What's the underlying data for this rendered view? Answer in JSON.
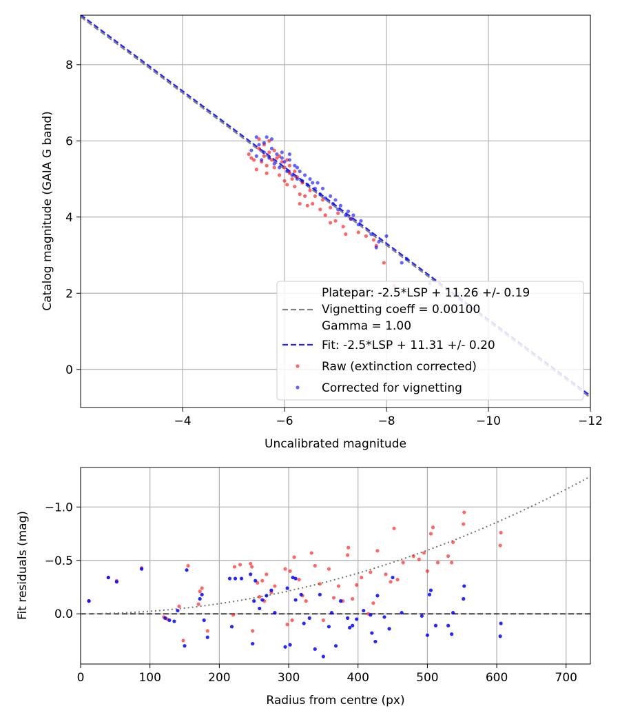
{
  "colors": {
    "raw": "#ff0000",
    "corrected": "#0000ff",
    "platepar": "#808080",
    "fit": "#2222ff",
    "grid": "#b0b0b0",
    "zero_line": "#404040",
    "vignetting_curve": "#707070"
  },
  "chart_data": [
    {
      "type": "scatter",
      "title": "",
      "xlabel": "Uncalibrated magnitude",
      "ylabel": "Catalog magnitude (GAIA G band)",
      "xlim": [
        -2,
        -12
      ],
      "ylim": [
        9.3,
        -1.0
      ],
      "xticks": [
        -4,
        -6,
        -8,
        -10,
        -12
      ],
      "xtick_labels": [
        "−4",
        "−6",
        "−8",
        "−10",
        "−12"
      ],
      "yticks": [
        0,
        2,
        4,
        6,
        8
      ],
      "ytick_labels": [
        "0",
        "2",
        "4",
        "6",
        "8"
      ],
      "grid": true,
      "legend_position": "lower-right",
      "legend": [
        "Platepar: -2.5*LSP + 11.26 +/- 0.19",
        "Vignetting coeff = 0.00100",
        "Gamma = 1.00",
        "Fit: -2.5*LSP + 11.31 +/- 0.20",
        "Raw (extinction corrected)",
        "Corrected for vignetting"
      ],
      "lines": [
        {
          "name": "Platepar",
          "x": [
            -2,
            -12
          ],
          "y": [
            9.26,
            -0.74
          ]
        },
        {
          "name": "Fit",
          "x": [
            -2,
            -12
          ],
          "y": [
            9.31,
            -0.69
          ]
        }
      ],
      "series": [
        {
          "name": "Raw (extinction corrected)",
          "points": [
            [
              -5.3,
              5.65
            ],
            [
              -5.4,
              5.5
            ],
            [
              -5.45,
              5.25
            ],
            [
              -5.5,
              5.8
            ],
            [
              -5.55,
              5.45
            ],
            [
              -5.6,
              5.6
            ],
            [
              -5.65,
              5.35
            ],
            [
              -5.7,
              5.7
            ],
            [
              -5.75,
              5.5
            ],
            [
              -5.8,
              5.3
            ],
            [
              -5.85,
              5.55
            ],
            [
              -5.9,
              5.1
            ],
            [
              -5.95,
              5.45
            ],
            [
              -6.0,
              4.95
            ],
            [
              -6.0,
              5.3
            ],
            [
              -6.05,
              4.85
            ],
            [
              -6.1,
              5.15
            ],
            [
              -6.15,
              5.0
            ],
            [
              -6.2,
              4.8
            ],
            [
              -6.25,
              5.05
            ],
            [
              -6.3,
              4.6
            ],
            [
              -6.35,
              4.9
            ],
            [
              -6.4,
              4.55
            ],
            [
              -6.45,
              4.3
            ],
            [
              -6.5,
              4.7
            ],
            [
              -6.55,
              4.35
            ],
            [
              -6.6,
              4.55
            ],
            [
              -6.7,
              4.2
            ],
            [
              -6.75,
              4.45
            ],
            [
              -6.8,
              4.05
            ],
            [
              -6.9,
              4.25
            ],
            [
              -7.0,
              3.9
            ],
            [
              -7.05,
              4.1
            ],
            [
              -7.15,
              3.75
            ],
            [
              -7.2,
              3.55
            ],
            [
              -7.3,
              3.95
            ],
            [
              -7.45,
              3.6
            ],
            [
              -7.6,
              3.5
            ],
            [
              -7.75,
              3.4
            ],
            [
              -7.95,
              2.8
            ],
            [
              -8.15,
              2.2
            ],
            [
              -5.5,
              6.05
            ],
            [
              -5.6,
              5.9
            ],
            [
              -5.7,
              6.0
            ],
            [
              -5.8,
              5.75
            ],
            [
              -5.9,
              5.6
            ],
            [
              -6.05,
              5.5
            ],
            [
              -6.1,
              5.35
            ],
            [
              -5.35,
              5.55
            ],
            [
              -5.65,
              5.15
            ],
            [
              -6.2,
              5.2
            ],
            [
              -6.3,
              4.35
            ],
            [
              -6.9,
              3.85
            ],
            [
              -7.8,
              3.25
            ]
          ]
        },
        {
          "name": "Corrected for vignetting",
          "points": [
            [
              -5.35,
              5.75
            ],
            [
              -5.45,
              5.6
            ],
            [
              -5.5,
              5.9
            ],
            [
              -5.55,
              5.5
            ],
            [
              -5.6,
              5.7
            ],
            [
              -5.65,
              6.1
            ],
            [
              -5.7,
              5.55
            ],
            [
              -5.75,
              5.8
            ],
            [
              -5.8,
              5.4
            ],
            [
              -5.85,
              5.65
            ],
            [
              -5.9,
              5.3
            ],
            [
              -5.95,
              5.55
            ],
            [
              -6.0,
              5.45
            ],
            [
              -6.05,
              5.2
            ],
            [
              -6.1,
              5.5
            ],
            [
              -6.15,
              5.1
            ],
            [
              -6.2,
              5.35
            ],
            [
              -6.25,
              5.0
            ],
            [
              -6.3,
              5.2
            ],
            [
              -6.35,
              4.95
            ],
            [
              -6.4,
              5.1
            ],
            [
              -6.45,
              4.85
            ],
            [
              -6.5,
              5.0
            ],
            [
              -6.55,
              4.9
            ],
            [
              -6.6,
              4.75
            ],
            [
              -6.65,
              4.9
            ],
            [
              -6.7,
              4.6
            ],
            [
              -6.75,
              4.75
            ],
            [
              -6.8,
              4.5
            ],
            [
              -6.9,
              4.55
            ],
            [
              -6.95,
              4.35
            ],
            [
              -7.0,
              4.45
            ],
            [
              -7.05,
              4.2
            ],
            [
              -7.1,
              4.3
            ],
            [
              -7.2,
              4.05
            ],
            [
              -7.25,
              4.15
            ],
            [
              -7.3,
              3.95
            ],
            [
              -7.35,
              4.05
            ],
            [
              -7.45,
              3.8
            ],
            [
              -7.5,
              3.9
            ],
            [
              -7.7,
              3.55
            ],
            [
              -7.85,
              3.35
            ],
            [
              -8.0,
              3.5
            ],
            [
              -8.3,
              2.8
            ],
            [
              -8.85,
              2.25
            ],
            [
              -5.45,
              6.1
            ],
            [
              -5.6,
              5.95
            ],
            [
              -5.75,
              6.05
            ],
            [
              -5.95,
              5.7
            ],
            [
              -6.1,
              5.65
            ],
            [
              -6.25,
              5.3
            ],
            [
              -7.8,
              3.2
            ],
            [
              -8.4,
              2.9
            ]
          ]
        }
      ]
    },
    {
      "type": "scatter",
      "title": "",
      "xlabel": "Radius from centre (px)",
      "ylabel": "Fit residuals (mag)",
      "xlim": [
        0,
        735
      ],
      "ylim": [
        -1.37,
        0.47
      ],
      "xticks": [
        0,
        100,
        200,
        300,
        400,
        500,
        600,
        700
      ],
      "xtick_labels": [
        "0",
        "100",
        "200",
        "300",
        "400",
        "500",
        "600",
        "700"
      ],
      "yticks": [
        0.0,
        -0.5,
        -1.0
      ],
      "ytick_labels": [
        "0.0",
        "−0.5",
        "−1.0"
      ],
      "grid": true,
      "zero_line": 0.0,
      "vignetting_curve": {
        "coeff": 0.001,
        "a": 2.38e-06
      },
      "series": [
        {
          "name": "Raw",
          "points": [
            [
              12,
              -0.12
            ],
            [
              40,
              -0.34
            ],
            [
              52,
              -0.31
            ],
            [
              88,
              -0.43
            ],
            [
              120,
              0.03
            ],
            [
              125,
              0.05
            ],
            [
              142,
              -0.07
            ],
            [
              148,
              0.25
            ],
            [
              155,
              -0.45
            ],
            [
              170,
              -0.09
            ],
            [
              172,
              -0.21
            ],
            [
              175,
              -0.24
            ],
            [
              183,
              0.16
            ],
            [
              220,
              0.01
            ],
            [
              222,
              -0.44
            ],
            [
              230,
              -0.46
            ],
            [
              245,
              -0.47
            ],
            [
              247,
              -0.44
            ],
            [
              255,
              -0.29
            ],
            [
              258,
              -0.16
            ],
            [
              262,
              -0.31
            ],
            [
              268,
              -0.37
            ],
            [
              275,
              -0.2
            ],
            [
              280,
              -0.26
            ],
            [
              295,
              -0.42
            ],
            [
              298,
              0.1
            ],
            [
              302,
              -0.4
            ],
            [
              305,
              0.06
            ],
            [
              308,
              -0.53
            ],
            [
              315,
              -0.32
            ],
            [
              320,
              -0.17
            ],
            [
              325,
              -0.12
            ],
            [
              333,
              -0.57
            ],
            [
              338,
              -0.45
            ],
            [
              345,
              -0.28
            ],
            [
              350,
              0.06
            ],
            [
              358,
              -0.42
            ],
            [
              365,
              -0.15
            ],
            [
              372,
              -0.26
            ],
            [
              378,
              -0.12
            ],
            [
              385,
              -0.55
            ],
            [
              386,
              -0.62
            ],
            [
              392,
              -0.14
            ],
            [
              398,
              -0.27
            ],
            [
              405,
              -0.34
            ],
            [
              418,
              -0.39
            ],
            [
              422,
              -0.1
            ],
            [
              428,
              -0.59
            ],
            [
              440,
              -0.37
            ],
            [
              447,
              -0.3
            ],
            [
              452,
              -0.8
            ],
            [
              457,
              -0.32
            ],
            [
              465,
              -0.48
            ],
            [
              480,
              -0.54
            ],
            [
              488,
              -0.51
            ],
            [
              495,
              -0.57
            ],
            [
              500,
              -0.4
            ],
            [
              505,
              -0.75
            ],
            [
              508,
              -0.81
            ],
            [
              515,
              -0.48
            ],
            [
              530,
              -0.54
            ],
            [
              535,
              -0.48
            ],
            [
              537,
              -0.67
            ],
            [
              552,
              -0.84
            ],
            [
              553,
              -0.95
            ],
            [
              605,
              -0.64
            ],
            [
              606,
              -0.76
            ],
            [
              248,
              0.16
            ],
            [
              415,
              0.0
            ],
            [
              265,
              -0.12
            ]
          ]
        },
        {
          "name": "Corrected",
          "points": [
            [
              12,
              -0.12
            ],
            [
              40,
              -0.34
            ],
            [
              52,
              -0.3
            ],
            [
              88,
              -0.42
            ],
            [
              122,
              0.04
            ],
            [
              128,
              0.06
            ],
            [
              135,
              0.07
            ],
            [
              140,
              -0.03
            ],
            [
              150,
              0.3
            ],
            [
              153,
              -0.41
            ],
            [
              172,
              -0.14
            ],
            [
              175,
              -0.18
            ],
            [
              178,
              0.06
            ],
            [
              183,
              0.22
            ],
            [
              218,
              0.12
            ],
            [
              223,
              -0.33
            ],
            [
              232,
              -0.33
            ],
            [
              245,
              -0.37
            ],
            [
              248,
              0.28
            ],
            [
              252,
              -0.31
            ],
            [
              258,
              -0.05
            ],
            [
              262,
              -0.13
            ],
            [
              268,
              -0.17
            ],
            [
              275,
              -0.22
            ],
            [
              280,
              -0.01
            ],
            [
              295,
              0.31
            ],
            [
              298,
              -0.24
            ],
            [
              302,
              0.29
            ],
            [
              306,
              -0.34
            ],
            [
              310,
              -0.13
            ],
            [
              318,
              -0.18
            ],
            [
              322,
              0.09
            ],
            [
              330,
              0.04
            ],
            [
              338,
              0.33
            ],
            [
              345,
              -0.18
            ],
            [
              350,
              0.4
            ],
            [
              358,
              0.12
            ],
            [
              362,
              -0.01
            ],
            [
              368,
              0.3
            ],
            [
              375,
              -0.12
            ],
            [
              385,
              0.04
            ],
            [
              388,
              0.13
            ],
            [
              392,
              0.11
            ],
            [
              398,
              0.05
            ],
            [
              408,
              -0.03
            ],
            [
              418,
              0.01
            ],
            [
              420,
              0.18
            ],
            [
              425,
              0.26
            ],
            [
              428,
              -0.17
            ],
            [
              438,
              0.03
            ],
            [
              445,
              0.14
            ],
            [
              450,
              -0.34
            ],
            [
              463,
              -0.01
            ],
            [
              492,
              0.02
            ],
            [
              500,
              0.2
            ],
            [
              503,
              -0.18
            ],
            [
              505,
              -0.22
            ],
            [
              512,
              0.11
            ],
            [
              530,
              0.11
            ],
            [
              535,
              0.19
            ],
            [
              537,
              -0.01
            ],
            [
              552,
              -0.14
            ],
            [
              553,
              -0.26
            ],
            [
              605,
              0.21
            ],
            [
              606,
              0.09
            ],
            [
              215,
              -0.33
            ],
            [
              250,
              -0.12
            ],
            [
              310,
              -0.33
            ]
          ]
        }
      ]
    }
  ]
}
